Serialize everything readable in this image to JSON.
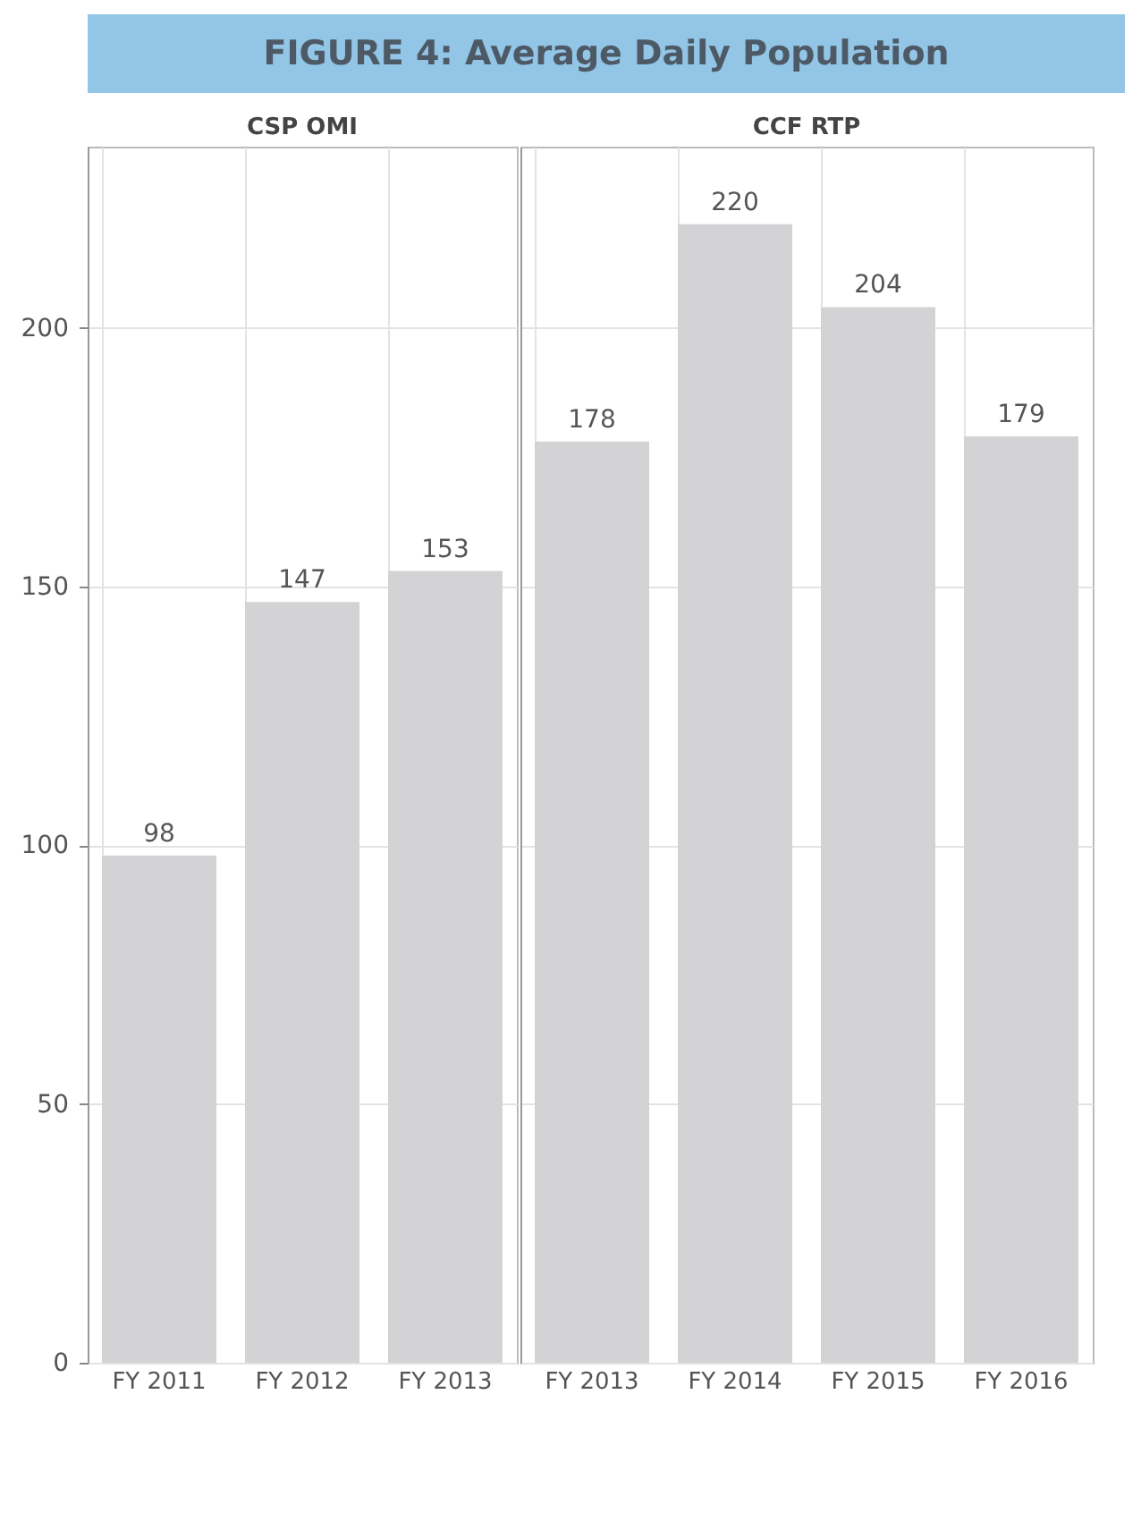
{
  "chart_data": [
    {
      "type": "other",
      "title": "FIGURE 4: Average Daily Population"
    },
    {
      "type": "bar",
      "title": "CSP OMI",
      "categories": [
        "FY 2011",
        "FY 2012",
        "FY 2013"
      ],
      "values": [
        98,
        147,
        153
      ],
      "color": "#d3d3d5",
      "ylim": [
        0,
        235
      ],
      "yticks": [
        0,
        50,
        100,
        150,
        200
      ],
      "grid": true,
      "data_labels": true
    },
    {
      "type": "bar",
      "title": "CCF RTP",
      "categories": [
        "FY 2013",
        "FY 2014",
        "FY 2015",
        "FY 2016"
      ],
      "values": [
        178,
        220,
        204,
        179
      ],
      "color": "#d3d3d5",
      "ylim": [
        0,
        235
      ],
      "yticks": [
        0,
        50,
        100,
        150,
        200
      ],
      "grid": true,
      "data_labels": true,
      "tick_labels": "x"
    }
  ]
}
